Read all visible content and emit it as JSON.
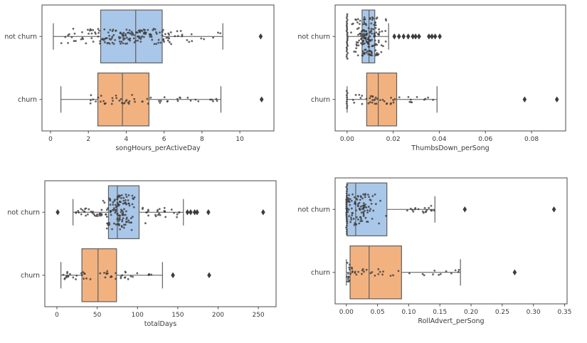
{
  "figure": {
    "background": "#ffffff",
    "rows": 2,
    "cols": 2
  },
  "colors": {
    "box_not_churn": "#a9c7e9",
    "box_churn": "#f2b280",
    "box_edge": "#5f5f5f",
    "whisker": "#555555",
    "point": "#3a3a3a",
    "outlier": "#3d3d3d",
    "axis_frame": "#4a4a4a",
    "text": "#3a3a3a"
  },
  "categories": [
    "not churn",
    "churn"
  ],
  "chart_data": [
    {
      "type": "box",
      "xlabel": "songHours_perActiveDay",
      "categories": [
        "not churn",
        "churn"
      ],
      "xlim": [
        -0.45,
        11.8
      ],
      "xticks": [
        0,
        2,
        4,
        6,
        8,
        10
      ],
      "xtick_labels": [
        "0",
        "2",
        "4",
        "6",
        "8",
        "10"
      ],
      "grid": false,
      "series": [
        {
          "name": "not churn",
          "whisker_lo": 0.15,
          "q1": 2.65,
          "median": 4.5,
          "q3": 5.9,
          "whisker_hi": 9.1,
          "outliers": [
            11.1
          ],
          "strip": [
            {
              "kind": "normal",
              "n": 145,
              "mean": 4.3,
              "sd": 1.55,
              "lo": 0.5,
              "hi": 8.9,
              "jitter": 11
            },
            {
              "kind": "uniform",
              "n": 30,
              "lo": 0.7,
              "hi": 9.0,
              "jitter": 7
            }
          ]
        },
        {
          "name": "churn",
          "whisker_lo": 0.55,
          "q1": 2.5,
          "median": 3.8,
          "q3": 5.2,
          "whisker_hi": 9.0,
          "outliers": [
            11.15
          ],
          "strip": [
            {
              "kind": "normal",
              "n": 38,
              "mean": 3.9,
              "sd": 1.2,
              "lo": 0.7,
              "hi": 6.3,
              "jitter": 7
            },
            {
              "kind": "uniform",
              "n": 16,
              "lo": 5.8,
              "hi": 8.9,
              "jitter": 3
            }
          ]
        }
      ]
    },
    {
      "type": "box",
      "xlabel": "ThumbsDown_perSong",
      "categories": [
        "not churn",
        "churn"
      ],
      "xlim": [
        -0.0052,
        0.0948
      ],
      "xticks": [
        0,
        0.02,
        0.04,
        0.06,
        0.08
      ],
      "xtick_labels": [
        "0.00",
        "0.02",
        "0.04",
        "0.06",
        "0.08"
      ],
      "grid": false,
      "series": [
        {
          "name": "not churn",
          "whisker_lo": 0.0,
          "q1": 0.0065,
          "median": 0.0095,
          "q3": 0.012,
          "whisker_hi": 0.018,
          "outliers": [
            0.0205,
            0.0225,
            0.0245,
            0.0265,
            0.0285,
            0.0297,
            0.0312,
            0.0355,
            0.0368,
            0.0382,
            0.0402
          ],
          "strip": [
            {
              "kind": "stack",
              "x": 0.0,
              "n": 25,
              "spacing": 2.6
            },
            {
              "kind": "normal",
              "n": 160,
              "mean": 0.0095,
              "sd": 0.0032,
              "lo": 0.0015,
              "hi": 0.0185,
              "jitter": 27
            }
          ]
        },
        {
          "name": "churn",
          "whisker_lo": 0.0,
          "q1": 0.0085,
          "median": 0.0135,
          "q3": 0.0215,
          "whisker_hi": 0.039,
          "outliers": [
            0.077,
            0.091
          ],
          "strip": [
            {
              "kind": "stack",
              "x": 0.0,
              "n": 9,
              "spacing": 3.0
            },
            {
              "kind": "normal",
              "n": 34,
              "mean": 0.013,
              "sd": 0.0055,
              "lo": 0.002,
              "hi": 0.03,
              "jitter": 7
            },
            {
              "kind": "uniform",
              "n": 10,
              "lo": 0.025,
              "hi": 0.0375,
              "jitter": 4
            }
          ]
        }
      ]
    },
    {
      "type": "box",
      "xlabel": "totalDays",
      "categories": [
        "not churn",
        "churn"
      ],
      "xlim": [
        -15,
        272
      ],
      "xticks": [
        0,
        50,
        100,
        150,
        200,
        250
      ],
      "xtick_labels": [
        "0",
        "50",
        "100",
        "150",
        "200",
        "250"
      ],
      "grid": false,
      "series": [
        {
          "name": "not churn",
          "whisker_lo": 20,
          "q1": 64,
          "median": 75,
          "q3": 102,
          "whisker_hi": 157,
          "outliers": [
            1,
            162,
            166,
            171,
            174,
            188,
            256
          ],
          "strip": [
            {
              "kind": "normal",
              "n": 125,
              "mean": 77,
              "sd": 11,
              "lo": 55,
              "hi": 110,
              "jitter": 25
            },
            {
              "kind": "uniform",
              "n": 28,
              "lo": 22,
              "hi": 58,
              "jitter": 6
            },
            {
              "kind": "uniform",
              "n": 26,
              "lo": 105,
              "hi": 156,
              "jitter": 7
            }
          ]
        },
        {
          "name": "churn",
          "whisker_lo": 5,
          "q1": 31,
          "median": 51,
          "q3": 74,
          "whisker_hi": 131,
          "outliers": [
            144,
            189
          ],
          "strip": [
            {
              "kind": "uniform",
              "n": 42,
              "lo": 8,
              "hi": 92,
              "jitter": 6
            },
            {
              "kind": "uniform",
              "n": 6,
              "lo": 92,
              "hi": 118,
              "jitter": 3
            }
          ]
        }
      ]
    },
    {
      "type": "box",
      "xlabel": "RollAdvert_perSong",
      "categories": [
        "not churn",
        "churn"
      ],
      "xlim": [
        -0.018,
        0.354
      ],
      "xticks": [
        0,
        0.05,
        0.1,
        0.15,
        0.2,
        0.25,
        0.3,
        0.35
      ],
      "xtick_labels": [
        "0.00",
        "0.05",
        "0.10",
        "0.15",
        "0.20",
        "0.25",
        "0.30",
        "0.35"
      ],
      "grid": false,
      "series": [
        {
          "name": "not churn",
          "whisker_lo": 0.0,
          "q1": 0.001,
          "median": 0.015,
          "q3": 0.065,
          "whisker_hi": 0.142,
          "outliers": [
            0.19,
            0.333
          ],
          "strip": [
            {
              "kind": "stack",
              "x": 0.0005,
              "n": 24,
              "spacing": 3.0
            },
            {
              "kind": "normal",
              "n": 100,
              "mean": 0.018,
              "sd": 0.017,
              "lo": 0.001,
              "hi": 0.09,
              "jitter": 22
            },
            {
              "kind": "uniform",
              "n": 18,
              "lo": 0.09,
              "hi": 0.142,
              "jitter": 5
            }
          ]
        },
        {
          "name": "churn",
          "whisker_lo": 0.0,
          "q1": 0.006,
          "median": 0.0365,
          "q3": 0.0885,
          "whisker_hi": 0.183,
          "outliers": [
            0.27
          ],
          "strip": [
            {
              "kind": "normal",
              "n": 16,
              "mean": 0.003,
              "sd": 0.0035,
              "lo": 0.0,
              "hi": 0.012,
              "jitter": 15
            },
            {
              "kind": "normal",
              "n": 20,
              "mean": 0.035,
              "sd": 0.02,
              "lo": 0.008,
              "hi": 0.08,
              "jitter": 5
            },
            {
              "kind": "uniform",
              "n": 13,
              "lo": 0.08,
              "hi": 0.182,
              "jitter": 4
            }
          ]
        }
      ]
    }
  ]
}
